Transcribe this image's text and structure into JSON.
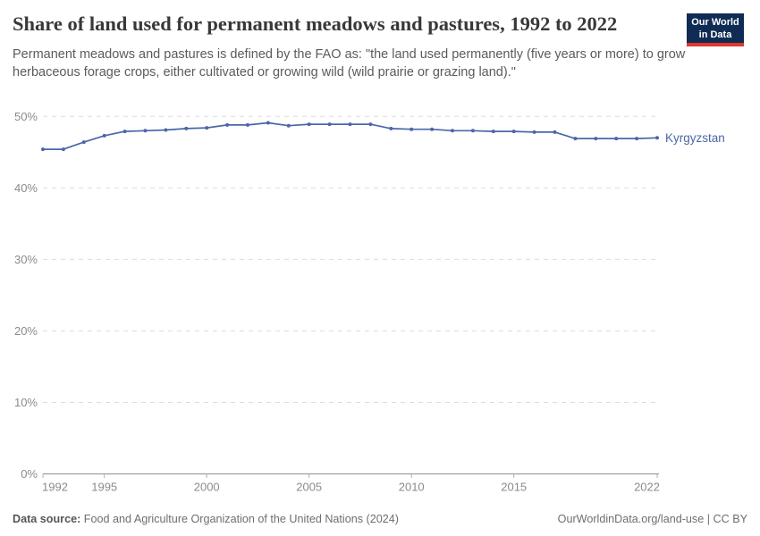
{
  "header": {
    "title": "Share of land used for permanent meadows and pastures, 1992 to 2022",
    "subtitle": "Permanent meadows and pastures is defined by the FAO as: \"the land used permanently (five years or more) to grow herbaceous forage crops, either cultivated or growing wild (wild prairie or grazing land).\"",
    "logo": {
      "line1": "Our World",
      "line2": "in Data",
      "bg_color": "#102C55",
      "accent_color": "#E0382D"
    }
  },
  "chart_data": {
    "type": "line",
    "title": "Share of land used for permanent meadows and pastures, 1992 to 2022",
    "xlabel": "",
    "ylabel": "",
    "xlim": [
      1992,
      2022
    ],
    "ylim": [
      0,
      50
    ],
    "xticks": [
      1992,
      1995,
      2000,
      2005,
      2010,
      2015,
      2022
    ],
    "yticks": [
      0,
      10,
      20,
      30,
      40,
      50
    ],
    "ytick_suffix": "%",
    "grid": "horizontal-dashed",
    "legend_position": "end-of-line",
    "series": [
      {
        "name": "Kyrgyzstan",
        "color": "#4A67A7",
        "x": [
          1992,
          1993,
          1994,
          1995,
          1996,
          1997,
          1998,
          1999,
          2000,
          2001,
          2002,
          2003,
          2004,
          2005,
          2006,
          2007,
          2008,
          2009,
          2010,
          2011,
          2012,
          2013,
          2014,
          2015,
          2016,
          2017,
          2018,
          2019,
          2020,
          2021,
          2022
        ],
        "values": [
          45.4,
          45.4,
          46.4,
          47.3,
          47.9,
          48.0,
          48.1,
          48.3,
          48.4,
          48.8,
          48.8,
          49.1,
          48.7,
          48.9,
          48.9,
          48.9,
          48.9,
          48.3,
          48.2,
          48.2,
          48.0,
          48.0,
          47.9,
          47.9,
          47.8,
          47.8,
          46.9,
          46.9,
          46.9,
          46.9,
          47.0
        ]
      }
    ]
  },
  "footer": {
    "source_label": "Data source:",
    "source_text": "Food and Agriculture Organization of the United Nations (2024)",
    "right_text": "OurWorldinData.org/land-use | CC BY"
  },
  "colors": {
    "line": "#4A67A7",
    "gridline": "#dcdcdc",
    "axis": "#8f8f8f",
    "tick_label": "#8b8b8b",
    "title": "#383838",
    "subtitle": "#5b5b5b"
  }
}
